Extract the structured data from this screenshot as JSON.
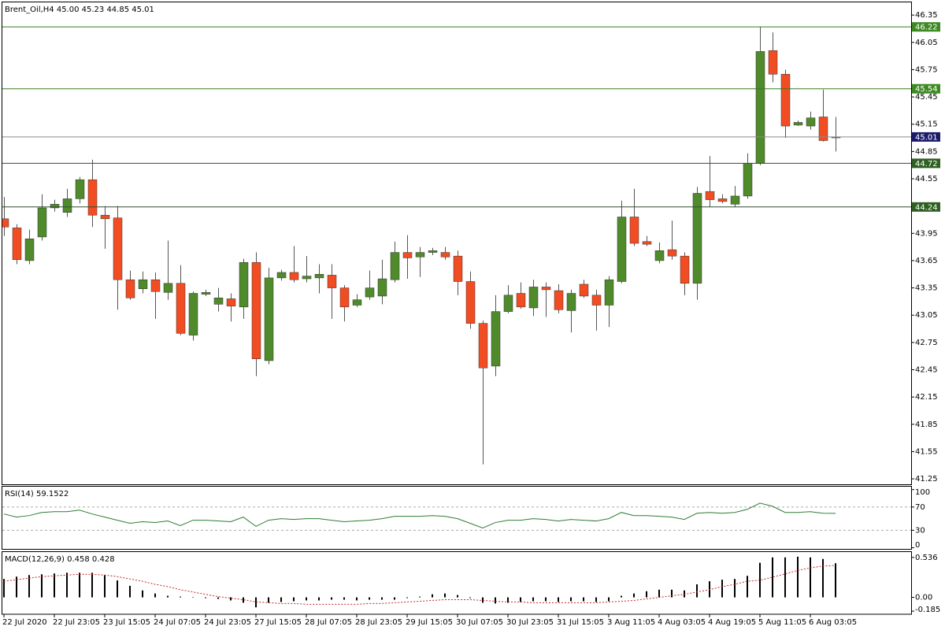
{
  "chart_data": [
    {
      "type": "candlestick",
      "title": "Brent_Oil,H4 45.00 45.23 44.85 45.01",
      "categories": [
        "22 Jul 2020",
        null,
        null,
        null,
        "22 Jul 23:05",
        null,
        null,
        null,
        "23 Jul 15:05",
        null,
        null,
        null,
        "24 Jul 07:05",
        null,
        null,
        null,
        "24 Jul 23:05",
        null,
        null,
        null,
        "27 Jul 15:05",
        null,
        null,
        null,
        "28 Jul 07:05",
        null,
        null,
        null,
        "28 Jul 23:05",
        null,
        null,
        null,
        "29 Jul 15:05",
        null,
        null,
        null,
        "30 Jul 07:05",
        null,
        null,
        null,
        "30 Jul 23:05",
        null,
        null,
        null,
        "31 Jul 15:05",
        null,
        null,
        null,
        "3 Aug 11:05",
        null,
        null,
        null,
        "4 Aug 03:05",
        null,
        null,
        null,
        "4 Aug 19:05",
        null,
        null,
        null,
        "5 Aug 11:05",
        null,
        null,
        null,
        "6 Aug 03:05",
        null,
        null
      ],
      "open": [
        44.11,
        44.01,
        43.65,
        43.91,
        44.23,
        44.18,
        44.33,
        44.54,
        44.15,
        44.12,
        43.44,
        43.34,
        43.44,
        43.3,
        43.4,
        42.83,
        43.28,
        43.17,
        43.23,
        43.14,
        43.63,
        42.55,
        43.46,
        43.52,
        43.45,
        43.46,
        43.49,
        43.35,
        43.16,
        43.25,
        43.26,
        43.44,
        43.74,
        43.69,
        43.74,
        43.74,
        43.7,
        43.42,
        42.96,
        42.49,
        43.09,
        43.29,
        43.13,
        43.36,
        43.32,
        43.1,
        43.39,
        43.27,
        43.16,
        43.42,
        44.13,
        43.86,
        43.65,
        43.77,
        43.7,
        43.4,
        44.41,
        44.33,
        44.27,
        44.36,
        44.72,
        45.96,
        45.7,
        45.14,
        45.13,
        45.23,
        45.0
      ],
      "high": [
        44.35,
        44.05,
        43.99,
        44.38,
        44.32,
        44.44,
        44.57,
        44.76,
        44.25,
        44.25,
        43.54,
        43.53,
        43.52,
        43.87,
        43.6,
        43.31,
        43.33,
        43.35,
        43.29,
        43.67,
        43.74,
        43.57,
        43.55,
        43.81,
        43.7,
        43.61,
        43.61,
        43.38,
        43.28,
        43.54,
        43.66,
        43.86,
        43.93,
        43.8,
        43.79,
        43.8,
        43.76,
        43.53,
        42.99,
        43.27,
        43.38,
        43.41,
        43.44,
        43.41,
        43.39,
        43.33,
        43.44,
        43.33,
        43.48,
        44.31,
        44.44,
        43.92,
        43.85,
        44.09,
        43.74,
        44.46,
        44.8,
        44.38,
        44.47,
        44.83,
        46.22,
        46.16,
        45.75,
        45.19,
        45.29,
        45.53,
        45.23
      ],
      "low": [
        43.92,
        43.61,
        43.61,
        43.87,
        44.19,
        44.13,
        44.28,
        44.02,
        43.78,
        43.11,
        43.22,
        43.29,
        43.01,
        43.22,
        42.83,
        42.77,
        43.26,
        43.09,
        42.98,
        43.01,
        42.38,
        42.51,
        43.43,
        43.41,
        43.41,
        43.29,
        43.01,
        42.98,
        43.14,
        43.22,
        43.17,
        43.41,
        43.45,
        43.47,
        43.71,
        43.66,
        43.27,
        42.9,
        41.41,
        42.38,
        43.07,
        43.12,
        43.04,
        43.03,
        43.07,
        42.86,
        43.24,
        42.88,
        42.92,
        43.4,
        43.81,
        43.81,
        43.62,
        43.66,
        43.27,
        43.22,
        44.24,
        44.28,
        44.24,
        44.33,
        44.7,
        45.61,
        45.0,
        45.13,
        45.09,
        44.96,
        44.85
      ],
      "close": [
        44.02,
        43.66,
        43.89,
        44.23,
        44.27,
        44.33,
        44.54,
        44.15,
        44.11,
        43.44,
        43.24,
        43.44,
        43.31,
        43.4,
        42.85,
        43.29,
        43.3,
        43.24,
        43.15,
        43.63,
        42.57,
        43.46,
        43.52,
        43.44,
        43.48,
        43.5,
        43.35,
        43.14,
        43.22,
        43.35,
        43.45,
        43.74,
        43.68,
        43.74,
        43.76,
        43.69,
        43.42,
        42.96,
        42.47,
        43.09,
        43.27,
        43.14,
        43.36,
        43.33,
        43.11,
        43.29,
        43.26,
        43.16,
        43.44,
        44.13,
        43.84,
        43.83,
        43.76,
        43.7,
        43.4,
        44.39,
        44.32,
        44.3,
        44.36,
        44.72,
        45.95,
        45.7,
        45.13,
        45.17,
        45.22,
        44.97,
        45.01
      ],
      "up_color": "#4f8a2b",
      "down_color": "#f24c22",
      "ylim": [
        41.19,
        46.49
      ],
      "yticks": [
        46.35,
        46.05,
        45.75,
        45.45,
        45.15,
        44.85,
        44.55,
        43.95,
        43.65,
        43.35,
        43.05,
        42.75,
        42.45,
        42.15,
        41.85,
        41.55,
        41.25
      ],
      "levels": [
        {
          "value": 46.22,
          "color": "#3d7a22",
          "box_color": "#3d8a22"
        },
        {
          "value": 45.54,
          "color": "#3d7a22",
          "box_color": "#3d8a22"
        },
        {
          "value": 45.01,
          "color": "#8a8a8a",
          "box_color": "#1b1b6b"
        },
        {
          "value": 44.72,
          "color": "#2f4f2f",
          "box_color": "#2f5f22"
        },
        {
          "value": 44.24,
          "color": "#2f4f2f",
          "box_color": "#2f5f22"
        }
      ]
    },
    {
      "type": "line",
      "title": "RSI(14) 59.1522",
      "color": "#2e7d32",
      "values": [
        58.0,
        52.7,
        55.3,
        60.7,
        62.0,
        62.0,
        64.7,
        58.0,
        52.7,
        47.3,
        42.0,
        44.7,
        43.3,
        46.0,
        38.0,
        47.3,
        47.3,
        46.0,
        44.7,
        52.7,
        36.7,
        47.3,
        50.0,
        48.7,
        50.0,
        50.0,
        47.3,
        44.7,
        46.0,
        47.3,
        50.0,
        54.0,
        54.0,
        54.0,
        55.3,
        54.0,
        50.0,
        42.0,
        34.0,
        43.3,
        47.3,
        47.3,
        50.0,
        48.7,
        46.0,
        48.7,
        47.3,
        46.0,
        50.0,
        60.7,
        55.3,
        55.3,
        54.0,
        52.7,
        48.7,
        59.3,
        60.7,
        59.3,
        60.7,
        66.0,
        76.7,
        71.3,
        60.7,
        60.7,
        62.0,
        59.3,
        59.1522
      ],
      "ylim": [
        -2,
        105
      ],
      "yticks": [
        100,
        70,
        30,
        0
      ],
      "levels": [
        70,
        30
      ]
    },
    {
      "type": "bar",
      "title": "MACD(12,26,9) 0.458 0.428",
      "ylim": [
        -0.216,
        0.608
      ],
      "yticks": [
        0.536,
        {
          "value": 0,
          "label": "0.00"
        },
        -0.185
      ],
      "series": [
        {
          "type": "bar",
          "color": "#000000",
          "values": [
            0.247,
            0.278,
            0.299,
            0.309,
            0.32,
            0.33,
            0.33,
            0.33,
            0.299,
            0.227,
            0.155,
            0.093,
            0.052,
            0.021,
            0.01,
            -0.005,
            -0.01,
            -0.021,
            -0.041,
            -0.072,
            -0.134,
            -0.072,
            -0.062,
            -0.052,
            -0.041,
            -0.041,
            -0.031,
            -0.031,
            -0.041,
            -0.031,
            -0.031,
            -0.031,
            -0.01,
            0.01,
            0.041,
            0.052,
            0.031,
            -0.01,
            -0.072,
            -0.082,
            -0.072,
            -0.062,
            -0.052,
            -0.052,
            -0.062,
            -0.052,
            -0.052,
            -0.062,
            -0.052,
            0.021,
            0.052,
            0.082,
            0.103,
            0.103,
            0.093,
            0.175,
            0.216,
            0.237,
            0.247,
            0.289,
            0.464,
            0.536,
            0.536,
            0.546,
            0.536,
            0.515,
            0.458
          ]
        },
        {
          "type": "line",
          "color": "#c62828",
          "dashed": true,
          "values": [
            0.216,
            0.237,
            0.258,
            0.278,
            0.289,
            0.299,
            0.309,
            0.309,
            0.299,
            0.278,
            0.247,
            0.216,
            0.175,
            0.144,
            0.103,
            0.072,
            0.041,
            0.01,
            -0.01,
            -0.031,
            -0.062,
            -0.072,
            -0.082,
            -0.082,
            -0.093,
            -0.093,
            -0.093,
            -0.093,
            -0.093,
            -0.082,
            -0.082,
            -0.072,
            -0.062,
            -0.052,
            -0.041,
            -0.031,
            -0.031,
            -0.031,
            -0.041,
            -0.052,
            -0.062,
            -0.062,
            -0.072,
            -0.072,
            -0.072,
            -0.072,
            -0.072,
            -0.072,
            -0.062,
            -0.052,
            -0.041,
            -0.021,
            0.0,
            0.021,
            0.041,
            0.072,
            0.103,
            0.144,
            0.175,
            0.216,
            0.23,
            0.27,
            0.315,
            0.361,
            0.396,
            0.42,
            0.428
          ]
        }
      ]
    }
  ]
}
